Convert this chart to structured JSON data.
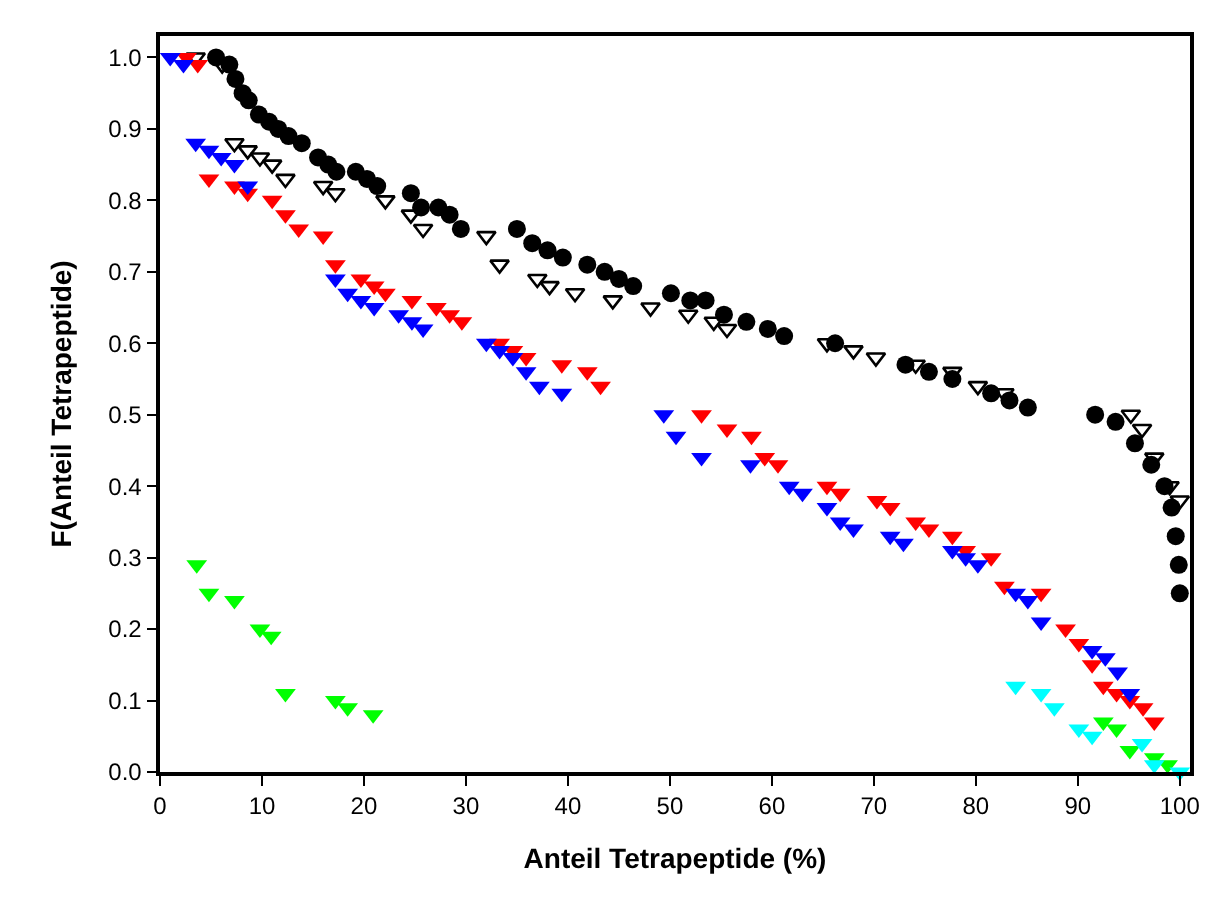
{
  "chart_data": {
    "type": "scatter",
    "xlabel": "Anteil Tetrapeptide (%)",
    "ylabel": "F(Anteil Tetrapeptide)",
    "xlim": [
      0,
      101
    ],
    "ylim": [
      0,
      1.03
    ],
    "xticks": [
      0,
      10,
      20,
      30,
      40,
      50,
      60,
      70,
      80,
      90,
      100
    ],
    "yticks": [
      {
        "value": 0,
        "label": "0.0"
      },
      {
        "value": 0.1,
        "label": "0.1"
      },
      {
        "value": 0.2,
        "label": "0.2"
      },
      {
        "value": 0.3,
        "label": "0.3"
      },
      {
        "value": 0.4,
        "label": "0.4"
      },
      {
        "value": 0.5,
        "label": "0.5"
      },
      {
        "value": 0.6,
        "label": "0.6"
      },
      {
        "value": 0.7,
        "label": "0.7"
      },
      {
        "value": 0.8,
        "label": "0.8"
      },
      {
        "value": 0.9,
        "label": "0.9"
      },
      {
        "value": 1.0,
        "label": "1.0"
      }
    ],
    "series": [
      {
        "color": "#000000",
        "marker": "circle",
        "x": [
          5.5,
          6.8,
          7.4,
          8.1,
          8.7,
          9.7,
          10.7,
          11.6,
          12.6,
          13.9,
          15.5,
          16.5,
          17.3,
          19.2,
          20.3,
          21.3,
          24.6,
          25.6,
          27.3,
          28.4,
          29.5,
          35.0,
          36.5,
          38.0,
          39.5,
          41.9,
          43.6,
          45.0,
          46.4,
          50.1,
          52.0,
          53.5,
          55.3,
          57.5,
          59.6,
          61.2,
          66.2,
          73.1,
          75.4,
          77.7,
          81.5,
          83.3,
          85.1,
          91.7,
          93.7,
          95.6,
          97.2,
          98.5,
          99.2,
          99.6,
          99.9,
          100
        ],
        "values": [
          1.0,
          0.99,
          0.97,
          0.95,
          0.94,
          0.92,
          0.91,
          0.9,
          0.89,
          0.88,
          0.86,
          0.85,
          0.84,
          0.84,
          0.83,
          0.82,
          0.81,
          0.79,
          0.79,
          0.78,
          0.76,
          0.76,
          0.74,
          0.73,
          0.72,
          0.71,
          0.7,
          0.69,
          0.68,
          0.67,
          0.66,
          0.66,
          0.64,
          0.63,
          0.62,
          0.61,
          0.6,
          0.57,
          0.56,
          0.55,
          0.53,
          0.52,
          0.51,
          0.5,
          0.49,
          0.46,
          0.43,
          0.4,
          0.37,
          0.33,
          0.29,
          0.25
        ]
      },
      {
        "color": "#000000",
        "marker": "triangle-down-open",
        "x": [
          3.5,
          6.1,
          7.3,
          8.6,
          9.8,
          11.0,
          12.3,
          16.0,
          17.2,
          22.1,
          24.6,
          25.8,
          32.0,
          33.3,
          37.0,
          38.2,
          40.7,
          44.4,
          48.1,
          51.8,
          54.3,
          55.6,
          65.4,
          68.0,
          70.2,
          74.1,
          77.7,
          80.2,
          82.8,
          95.2,
          96.3,
          97.5,
          99.0,
          100
        ],
        "values": [
          1.0,
          0.99,
          0.88,
          0.87,
          0.86,
          0.85,
          0.83,
          0.82,
          0.81,
          0.8,
          0.78,
          0.76,
          0.75,
          0.71,
          0.69,
          0.68,
          0.67,
          0.66,
          0.65,
          0.64,
          0.63,
          0.62,
          0.6,
          0.59,
          0.58,
          0.57,
          0.56,
          0.54,
          0.53,
          0.5,
          0.48,
          0.44,
          0.4,
          0.38
        ]
      },
      {
        "color": "#ff0000",
        "marker": "triangle-down",
        "x": [
          2.6,
          3.7,
          4.8,
          7.3,
          8.6,
          11.0,
          12.3,
          13.6,
          16.0,
          17.2,
          19.7,
          21.0,
          22.1,
          24.7,
          27.1,
          28.4,
          29.6,
          33.3,
          34.6,
          35.9,
          39.4,
          41.9,
          43.2,
          53.1,
          55.6,
          58.0,
          59.3,
          60.6,
          65.4,
          66.7,
          70.3,
          71.6,
          74.1,
          75.4,
          77.7,
          79.0,
          81.5,
          82.8,
          86.4,
          88.8,
          90.1,
          91.4,
          92.5,
          93.8,
          95.1,
          96.4,
          97.5
        ],
        "values": [
          1.0,
          0.99,
          0.83,
          0.82,
          0.81,
          0.8,
          0.78,
          0.76,
          0.75,
          0.71,
          0.69,
          0.68,
          0.67,
          0.66,
          0.65,
          0.64,
          0.63,
          0.6,
          0.59,
          0.58,
          0.57,
          0.56,
          0.54,
          0.5,
          0.48,
          0.47,
          0.44,
          0.43,
          0.4,
          0.39,
          0.38,
          0.37,
          0.35,
          0.34,
          0.33,
          0.31,
          0.3,
          0.26,
          0.25,
          0.2,
          0.18,
          0.15,
          0.12,
          0.11,
          0.1,
          0.09,
          0.07
        ]
      },
      {
        "color": "#0000ff",
        "marker": "triangle-down",
        "x": [
          1.0,
          2.3,
          3.5,
          4.8,
          6.0,
          7.3,
          8.6,
          17.2,
          18.4,
          19.7,
          21.0,
          23.4,
          24.7,
          25.8,
          32.0,
          33.3,
          34.6,
          35.9,
          37.2,
          39.4,
          49.4,
          50.6,
          53.1,
          57.9,
          61.7,
          63.0,
          65.4,
          66.7,
          68.0,
          71.6,
          72.9,
          77.7,
          79.0,
          80.2,
          83.9,
          85.1,
          86.4,
          91.4,
          92.7,
          93.9,
          95.1
        ],
        "values": [
          1.0,
          0.99,
          0.88,
          0.87,
          0.86,
          0.85,
          0.82,
          0.69,
          0.67,
          0.66,
          0.65,
          0.64,
          0.63,
          0.62,
          0.6,
          0.59,
          0.58,
          0.56,
          0.54,
          0.53,
          0.5,
          0.47,
          0.44,
          0.43,
          0.4,
          0.39,
          0.37,
          0.35,
          0.34,
          0.33,
          0.32,
          0.31,
          0.3,
          0.29,
          0.25,
          0.24,
          0.21,
          0.17,
          0.16,
          0.14,
          0.11
        ]
      },
      {
        "color": "#00ff00",
        "marker": "triangle-down",
        "x": [
          3.6,
          4.8,
          7.3,
          9.8,
          10.9,
          12.3,
          17.2,
          18.4,
          20.9,
          92.5,
          93.8,
          95.1,
          97.5,
          98.8
        ],
        "values": [
          0.29,
          0.25,
          0.24,
          0.2,
          0.19,
          0.11,
          0.1,
          0.09,
          0.08,
          0.07,
          0.06,
          0.03,
          0.02,
          0.01
        ]
      },
      {
        "color": "#00ffff",
        "marker": "triangle-down",
        "x": [
          83.9,
          86.4,
          87.7,
          90.1,
          91.4,
          96.3,
          97.5,
          100
        ],
        "values": [
          0.12,
          0.11,
          0.09,
          0.06,
          0.05,
          0.04,
          0.01,
          0.0
        ]
      }
    ]
  }
}
